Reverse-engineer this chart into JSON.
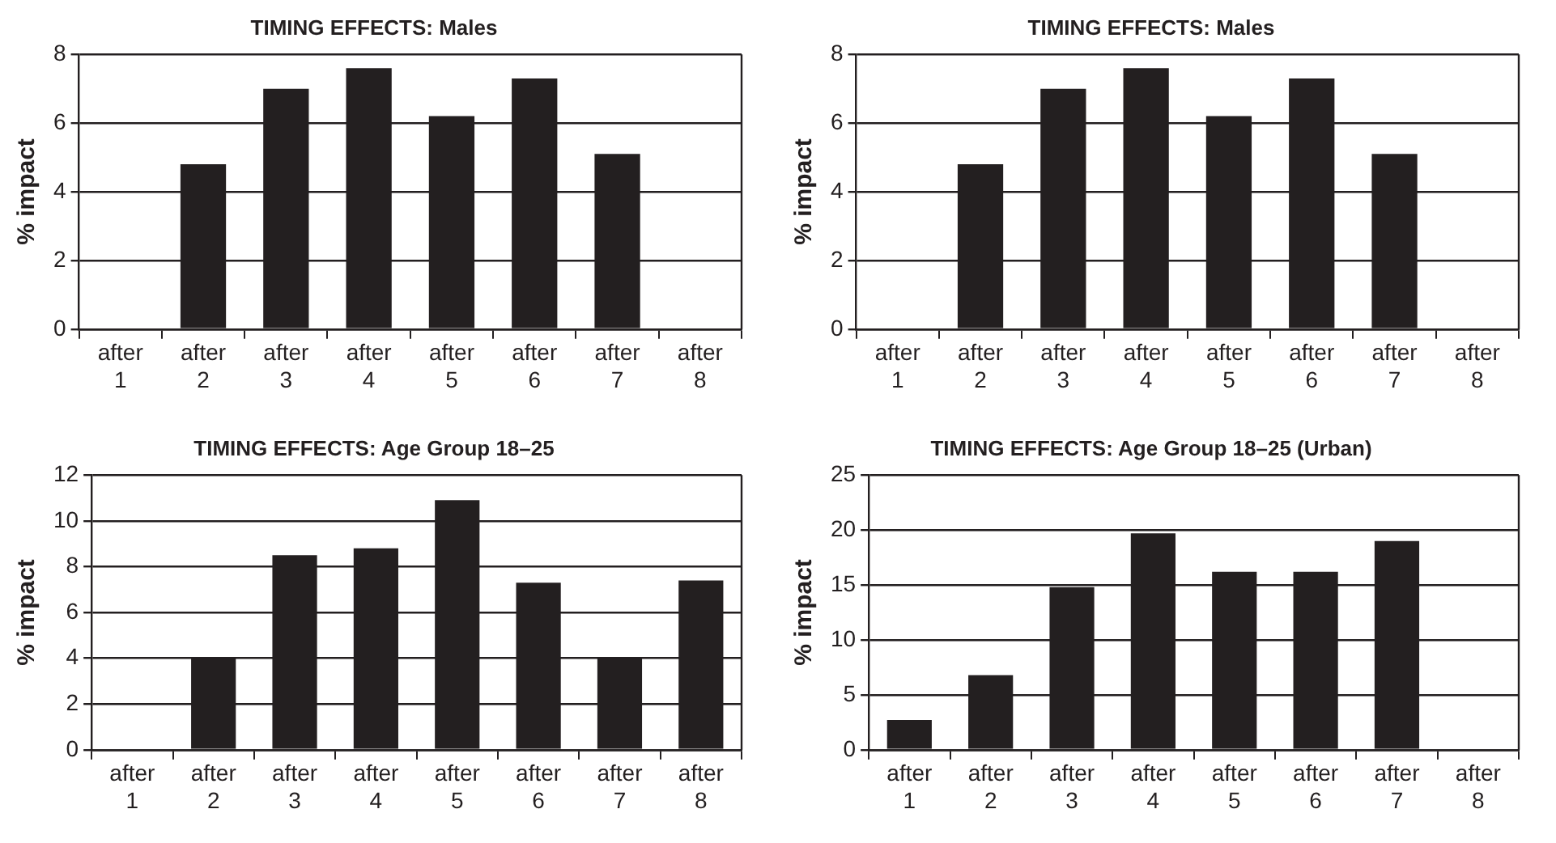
{
  "chart_data": [
    {
      "type": "bar",
      "title": "TIMING EFFECTS: Males",
      "ylabel": "% impact",
      "categories": [
        "after 1",
        "after 2",
        "after 3",
        "after 4",
        "after 5",
        "after 6",
        "after 7",
        "after 8"
      ],
      "values": [
        0,
        4.8,
        7.0,
        7.6,
        6.2,
        7.3,
        5.1,
        0
      ],
      "color": "#231f20",
      "ylim": [
        0,
        8
      ],
      "yticks": [
        0,
        2,
        4,
        6,
        8
      ],
      "grid": "y"
    },
    {
      "type": "bar",
      "title": "TIMING EFFECTS: Males",
      "ylabel": "% impact",
      "categories": [
        "after 1",
        "after 2",
        "after 3",
        "after 4",
        "after 5",
        "after 6",
        "after 7",
        "after 8"
      ],
      "values": [
        0,
        4.8,
        7.0,
        7.6,
        6.2,
        7.3,
        5.1,
        0
      ],
      "color": "#231f20",
      "ylim": [
        0,
        8
      ],
      "yticks": [
        0,
        2,
        4,
        6,
        8
      ],
      "grid": "y"
    },
    {
      "type": "bar",
      "title": "TIMING EFFECTS: Age Group 18–25",
      "ylabel": "% impact",
      "categories": [
        "after 1",
        "after 2",
        "after 3",
        "after 4",
        "after 5",
        "after 6",
        "after 7",
        "after 8"
      ],
      "values": [
        0,
        4.0,
        8.5,
        8.8,
        10.9,
        7.3,
        4.0,
        7.4
      ],
      "color": "#231f20",
      "ylim": [
        0,
        12
      ],
      "yticks": [
        0,
        2,
        4,
        6,
        8,
        10,
        12
      ],
      "grid": "y"
    },
    {
      "type": "bar",
      "title": "TIMING EFFECTS: Age Group 18–25 (Urban)",
      "ylabel": "% impact",
      "categories": [
        "after 1",
        "after 2",
        "after 3",
        "after 4",
        "after 5",
        "after 6",
        "after 7",
        "after 8"
      ],
      "values": [
        2.7,
        6.8,
        14.8,
        19.7,
        16.2,
        16.2,
        19.0,
        0
      ],
      "color": "#231f20",
      "ylim": [
        0,
        25
      ],
      "yticks": [
        0,
        5,
        10,
        15,
        20,
        25
      ],
      "grid": "y"
    }
  ]
}
